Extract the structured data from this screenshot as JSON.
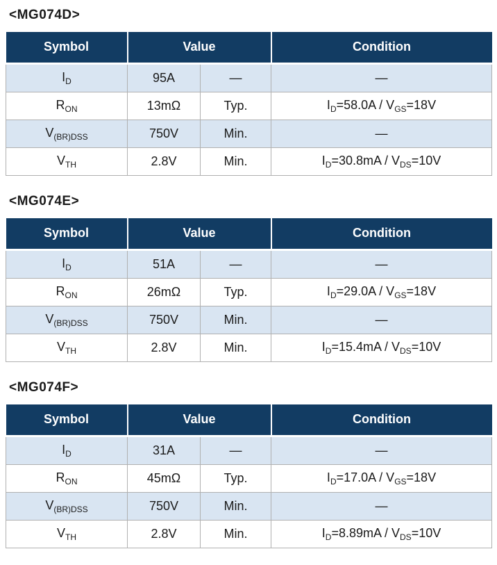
{
  "colors": {
    "header_bg": "#123c63",
    "header_text": "#ffffff",
    "row_alt_bg": "#d9e5f2",
    "row_bg": "#ffffff",
    "border": "#b0b0b0",
    "text": "#1a1a1a"
  },
  "columns": {
    "symbol": "Symbol",
    "value": "Value",
    "condition": "Condition"
  },
  "tables": [
    {
      "title": "<MG074D>",
      "rows": [
        {
          "symbol": [
            {
              "t": "I",
              "s": false
            },
            {
              "t": "D",
              "s": true
            }
          ],
          "value": "95A",
          "qualifier": "—",
          "condition": [
            {
              "t": "—",
              "s": false
            }
          ]
        },
        {
          "symbol": [
            {
              "t": "R",
              "s": false
            },
            {
              "t": "ON",
              "s": true
            }
          ],
          "value": "13mΩ",
          "qualifier": "Typ.",
          "condition": [
            {
              "t": "I",
              "s": false
            },
            {
              "t": "D",
              "s": true
            },
            {
              "t": "=58.0A / V",
              "s": false
            },
            {
              "t": "GS",
              "s": true
            },
            {
              "t": "=18V",
              "s": false
            }
          ]
        },
        {
          "symbol": [
            {
              "t": "V",
              "s": false
            },
            {
              "t": "(BR)DSS",
              "s": true
            }
          ],
          "value": "750V",
          "qualifier": "Min.",
          "condition": [
            {
              "t": "—",
              "s": false
            }
          ]
        },
        {
          "symbol": [
            {
              "t": "V",
              "s": false
            },
            {
              "t": "TH",
              "s": true
            }
          ],
          "value": "2.8V",
          "qualifier": "Min.",
          "condition": [
            {
              "t": "I",
              "s": false
            },
            {
              "t": "D",
              "s": true
            },
            {
              "t": "=30.8mA / V",
              "s": false
            },
            {
              "t": "DS",
              "s": true
            },
            {
              "t": "=10V",
              "s": false
            }
          ]
        }
      ]
    },
    {
      "title": "<MG074E>",
      "rows": [
        {
          "symbol": [
            {
              "t": "I",
              "s": false
            },
            {
              "t": "D",
              "s": true
            }
          ],
          "value": "51A",
          "qualifier": "—",
          "condition": [
            {
              "t": "—",
              "s": false
            }
          ]
        },
        {
          "symbol": [
            {
              "t": "R",
              "s": false
            },
            {
              "t": "ON",
              "s": true
            }
          ],
          "value": "26mΩ",
          "qualifier": "Typ.",
          "condition": [
            {
              "t": "I",
              "s": false
            },
            {
              "t": "D",
              "s": true
            },
            {
              "t": "=29.0A / V",
              "s": false
            },
            {
              "t": "GS",
              "s": true
            },
            {
              "t": "=18V",
              "s": false
            }
          ]
        },
        {
          "symbol": [
            {
              "t": "V",
              "s": false
            },
            {
              "t": "(BR)DSS",
              "s": true
            }
          ],
          "value": "750V",
          "qualifier": "Min.",
          "condition": [
            {
              "t": "—",
              "s": false
            }
          ]
        },
        {
          "symbol": [
            {
              "t": "V",
              "s": false
            },
            {
              "t": "TH",
              "s": true
            }
          ],
          "value": "2.8V",
          "qualifier": "Min.",
          "condition": [
            {
              "t": "I",
              "s": false
            },
            {
              "t": "D",
              "s": true
            },
            {
              "t": "=15.4mA / V",
              "s": false
            },
            {
              "t": "DS",
              "s": true
            },
            {
              "t": "=10V",
              "s": false
            }
          ]
        }
      ]
    },
    {
      "title": "<MG074F>",
      "rows": [
        {
          "symbol": [
            {
              "t": "I",
              "s": false
            },
            {
              "t": "D",
              "s": true
            }
          ],
          "value": "31A",
          "qualifier": "—",
          "condition": [
            {
              "t": "—",
              "s": false
            }
          ]
        },
        {
          "symbol": [
            {
              "t": "R",
              "s": false
            },
            {
              "t": "ON",
              "s": true
            }
          ],
          "value": "45mΩ",
          "qualifier": "Typ.",
          "condition": [
            {
              "t": "I",
              "s": false
            },
            {
              "t": "D",
              "s": true
            },
            {
              "t": "=17.0A / V",
              "s": false
            },
            {
              "t": "GS",
              "s": true
            },
            {
              "t": "=18V",
              "s": false
            }
          ]
        },
        {
          "symbol": [
            {
              "t": "V",
              "s": false
            },
            {
              "t": "(BR)DSS",
              "s": true
            }
          ],
          "value": "750V",
          "qualifier": "Min.",
          "condition": [
            {
              "t": "—",
              "s": false
            }
          ]
        },
        {
          "symbol": [
            {
              "t": "V",
              "s": false
            },
            {
              "t": "TH",
              "s": true
            }
          ],
          "value": "2.8V",
          "qualifier": "Min.",
          "condition": [
            {
              "t": "I",
              "s": false
            },
            {
              "t": "D",
              "s": true
            },
            {
              "t": "=8.89mA / V",
              "s": false
            },
            {
              "t": "DS",
              "s": true
            },
            {
              "t": "=10V",
              "s": false
            }
          ]
        }
      ]
    }
  ]
}
